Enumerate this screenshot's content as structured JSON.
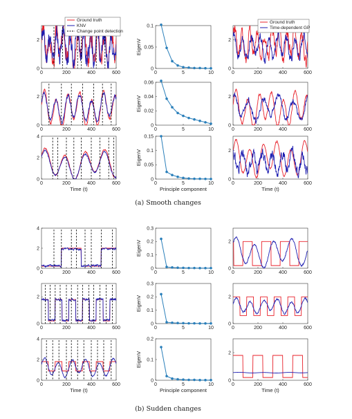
{
  "captions": {
    "smooth": "(a) Smooth changes",
    "sudden": "(b) Sudden changes"
  },
  "colors": {
    "ground_truth": "#e8202a",
    "knv": "#1c1cb0",
    "gp": "#1c1cb0",
    "change_point": "#000000",
    "eigen": "#2a7fba"
  },
  "legend_left": [
    "Ground truth",
    "KNV",
    "Change point detection"
  ],
  "legend_right": [
    "Ground truth",
    "Time-dependent GP"
  ],
  "chart_data": [
    {
      "id": "a1-knv",
      "type": "line",
      "xlabel": "",
      "ylabel": "",
      "xlim": [
        0,
        600
      ],
      "ylim": [
        0,
        3
      ],
      "yticks": [
        0,
        2
      ],
      "series": [
        {
          "name": "Ground truth",
          "kind": "smooth",
          "params": {
            "base": 1.6,
            "amp": 0.9,
            "period": 55,
            "phase": 0.2,
            "noise": 0.55,
            "seed": 3
          }
        },
        {
          "name": "KNV",
          "kind": "smooth",
          "params": {
            "base": 1.55,
            "amp": 0.85,
            "period": 55,
            "phase": 0.4,
            "noise": 0.55,
            "seed": 11
          }
        }
      ],
      "change_points": [
        100,
        170,
        290,
        320,
        440,
        510
      ]
    },
    {
      "id": "a1-eig",
      "type": "line",
      "xlabel": "",
      "ylabel": "EigenV",
      "xlim": [
        0,
        10
      ],
      "ylim": [
        0,
        0.1
      ],
      "yticks": [
        0,
        0.05,
        0.1
      ],
      "x": [
        1,
        2,
        3,
        4,
        5,
        6,
        7,
        8,
        9,
        10
      ],
      "values": [
        0.102,
        0.048,
        0.017,
        0.007,
        0.003,
        0.002,
        0.001,
        0.001,
        0.0005,
        0.0003
      ]
    },
    {
      "id": "a1-gp",
      "type": "line",
      "xlabel": "",
      "ylabel": "",
      "xlim": [
        0,
        600
      ],
      "ylim": [
        0,
        3
      ],
      "yticks": [
        0,
        2
      ],
      "series": [
        {
          "name": "Ground truth",
          "kind": "smooth",
          "params": {
            "base": 1.7,
            "amp": 0.9,
            "period": 60,
            "phase": 0.1,
            "noise": 0.35,
            "seed": 5
          }
        },
        {
          "name": "Time-dependent GP",
          "kind": "smooth",
          "params": {
            "base": 1.5,
            "amp": 0.7,
            "period": 70,
            "phase": 0.9,
            "noise": 0.25,
            "seed": 17
          }
        }
      ]
    },
    {
      "id": "a2-knv",
      "type": "line",
      "xlabel": "",
      "ylabel": "",
      "xlim": [
        0,
        600
      ],
      "ylim": [
        0,
        3
      ],
      "yticks": [
        0,
        2
      ],
      "series": [
        {
          "name": "Ground truth",
          "kind": "smooth",
          "params": {
            "base": 1.1,
            "amp": 1.0,
            "period": 95,
            "phase": 0.0,
            "noise": 0.08,
            "seed": 2
          }
        },
        {
          "name": "KNV",
          "kind": "smooth",
          "params": {
            "base": 1.2,
            "amp": 0.8,
            "period": 95,
            "phase": 0.15,
            "noise": 0.1,
            "seed": 7
          }
        }
      ],
      "change_points": [
        60,
        160,
        240,
        330,
        420,
        490,
        560
      ]
    },
    {
      "id": "a2-eig",
      "type": "line",
      "xlabel": "",
      "ylabel": "EigenV",
      "xlim": [
        0,
        10
      ],
      "ylim": [
        0,
        0.06
      ],
      "yticks": [
        0,
        0.02,
        0.04,
        0.06
      ],
      "x": [
        1,
        2,
        3,
        4,
        5,
        6,
        7,
        8,
        9,
        10
      ],
      "values": [
        0.062,
        0.037,
        0.025,
        0.017,
        0.013,
        0.01,
        0.008,
        0.006,
        0.004,
        0.002
      ]
    },
    {
      "id": "a2-gp",
      "type": "line",
      "xlabel": "",
      "ylabel": "",
      "xlim": [
        0,
        600
      ],
      "ylim": [
        0,
        3
      ],
      "yticks": [
        0,
        2
      ],
      "series": [
        {
          "name": "Ground truth",
          "kind": "smooth",
          "params": {
            "base": 1.1,
            "amp": 1.0,
            "period": 95,
            "phase": 0.0,
            "noise": 0.08,
            "seed": 2
          }
        },
        {
          "name": "Time-dependent GP",
          "kind": "smooth",
          "params": {
            "base": 1.2,
            "amp": 0.7,
            "period": 120,
            "phase": 1.3,
            "noise": 0.15,
            "seed": 21
          }
        }
      ]
    },
    {
      "id": "a3-knv",
      "type": "line",
      "xlabel": "Time (t)",
      "ylabel": "",
      "xlim": [
        0,
        600
      ],
      "ylim": [
        0,
        4
      ],
      "yticks": [
        0,
        2,
        4
      ],
      "series": [
        {
          "name": "Ground truth",
          "kind": "smooth",
          "params": {
            "base": 1.4,
            "amp": 1.1,
            "period": 160,
            "phase": 0.4,
            "noise": 0.05,
            "seed": 4
          }
        },
        {
          "name": "KNV",
          "kind": "smooth",
          "params": {
            "base": 1.3,
            "amp": 1.0,
            "period": 160,
            "phase": 0.45,
            "noise": 0.06,
            "seed": 9
          }
        }
      ],
      "change_points": [
        90,
        130,
        200,
        260,
        320,
        400,
        470,
        540,
        580
      ]
    },
    {
      "id": "a3-eig",
      "type": "line",
      "xlabel": "Principle component",
      "ylabel": "EigenV",
      "xlim": [
        0,
        10
      ],
      "ylim": [
        0,
        0.15
      ],
      "yticks": [
        0,
        0.05,
        0.1,
        0.15
      ],
      "x": [
        1,
        2,
        3,
        4,
        5,
        6,
        7,
        8,
        9,
        10
      ],
      "values": [
        0.15,
        0.025,
        0.014,
        0.008,
        0.004,
        0.002,
        0.001,
        0.001,
        0.0005,
        0.0003
      ]
    },
    {
      "id": "a3-gp",
      "type": "line",
      "xlabel": "Time (t)",
      "ylabel": "",
      "xlim": [
        0,
        600
      ],
      "ylim": [
        0,
        3
      ],
      "yticks": [
        0,
        2
      ],
      "series": [
        {
          "name": "Ground truth",
          "kind": "smooth",
          "params": {
            "base": 1.4,
            "amp": 1.0,
            "period": 110,
            "phase": 0.2,
            "noise": 0.05,
            "seed": 6
          }
        },
        {
          "name": "Time-dependent GP",
          "kind": "smooth",
          "params": {
            "base": 1.2,
            "amp": 0.6,
            "period": 80,
            "phase": 1.8,
            "noise": 0.3,
            "seed": 31
          }
        }
      ]
    },
    {
      "id": "b1-knv",
      "type": "line",
      "xlabel": "",
      "ylabel": "",
      "xlim": [
        0,
        600
      ],
      "ylim": [
        0,
        4
      ],
      "yticks": [
        0,
        2,
        4
      ],
      "series": [
        {
          "name": "Ground truth",
          "kind": "step",
          "params": {
            "high": 2.0,
            "low": 0.2,
            "first_high": 160,
            "period": 320,
            "noise": 0.0,
            "seed": 1
          }
        },
        {
          "name": "KNV",
          "kind": "step",
          "params": {
            "high": 1.9,
            "low": 0.25,
            "first_high": 160,
            "period": 320,
            "noise": 0.08,
            "seed": 8
          }
        }
      ],
      "change_points": [
        100,
        160,
        240,
        280,
        350,
        400,
        480,
        570
      ]
    },
    {
      "id": "b1-eig",
      "type": "line",
      "xlabel": "",
      "ylabel": "EigenV",
      "xlim": [
        0,
        10
      ],
      "ylim": [
        0,
        0.3
      ],
      "yticks": [
        0,
        0.1,
        0.2,
        0.3
      ],
      "x": [
        1,
        2,
        3,
        4,
        5,
        6,
        7,
        8,
        9,
        10
      ],
      "values": [
        0.22,
        0.01,
        0.006,
        0.004,
        0.003,
        0.002,
        0.002,
        0.001,
        0.001,
        0.001
      ]
    },
    {
      "id": "b1-gp",
      "type": "line",
      "xlabel": "",
      "ylabel": "",
      "xlim": [
        0,
        600
      ],
      "ylim": [
        0,
        3
      ],
      "yticks": [
        0,
        2
      ],
      "series": [
        {
          "name": "Ground truth",
          "kind": "step",
          "params": {
            "high": 2.0,
            "low": 0.2,
            "first_high": 80,
            "period": 150,
            "noise": 0.0,
            "seed": 1
          }
        },
        {
          "name": "Time-dependent GP",
          "kind": "smooth",
          "params": {
            "base": 1.15,
            "amp": 0.85,
            "period": 150,
            "phase": 0.6,
            "noise": 0.05,
            "seed": 12
          }
        }
      ]
    },
    {
      "id": "b2-knv",
      "type": "line",
      "xlabel": "",
      "ylabel": "",
      "xlim": [
        0,
        600
      ],
      "ylim": [
        0,
        3
      ],
      "yticks": [
        0,
        2
      ],
      "series": [
        {
          "name": "Ground truth",
          "kind": "step",
          "params": {
            "high": 1.8,
            "low": 0.2,
            "first_high": 0,
            "period": 110,
            "noise": 0.0,
            "seed": 1
          }
        },
        {
          "name": "KNV",
          "kind": "step",
          "params": {
            "high": 1.8,
            "low": 0.25,
            "first_high": 0,
            "period": 110,
            "noise": 0.06,
            "seed": 10
          }
        }
      ],
      "change_points": [
        30,
        70,
        110,
        150,
        200,
        240,
        290,
        330,
        380,
        420,
        470,
        520,
        570
      ]
    },
    {
      "id": "b2-eig",
      "type": "line",
      "xlabel": "",
      "ylabel": "EigenV",
      "xlim": [
        0,
        10
      ],
      "ylim": [
        0,
        0.3
      ],
      "yticks": [
        0,
        0.1,
        0.2,
        0.3
      ],
      "x": [
        1,
        2,
        3,
        4,
        5,
        6,
        7,
        8,
        9,
        10
      ],
      "values": [
        0.22,
        0.01,
        0.006,
        0.004,
        0.003,
        0.002,
        0.002,
        0.001,
        0.001,
        0.001
      ]
    },
    {
      "id": "b2-gp",
      "type": "line",
      "xlabel": "",
      "ylabel": "",
      "xlim": [
        0,
        600
      ],
      "ylim": [
        0,
        3
      ],
      "yticks": [
        0,
        2
      ],
      "series": [
        {
          "name": "Ground truth",
          "kind": "step",
          "params": {
            "high": 2.0,
            "low": 0.6,
            "first_high": 0,
            "period": 110,
            "noise": 0.0,
            "seed": 1
          }
        },
        {
          "name": "Time-dependent GP",
          "kind": "smooth",
          "params": {
            "base": 1.3,
            "amp": 0.45,
            "period": 110,
            "phase": 0.0,
            "noise": 0.05,
            "seed": 14
          }
        }
      ]
    },
    {
      "id": "b3-knv",
      "type": "line",
      "xlabel": "Time (t)",
      "ylabel": "",
      "xlim": [
        0,
        600
      ],
      "ylim": [
        0,
        4
      ],
      "yticks": [
        0,
        2,
        4
      ],
      "series": [
        {
          "name": "Ground truth",
          "kind": "step",
          "params": {
            "high": 1.8,
            "low": 0.9,
            "first_high": 0,
            "period": 110,
            "noise": 0.0,
            "seed": 1
          }
        },
        {
          "name": "KNV",
          "kind": "smooth",
          "params": {
            "base": 1.2,
            "amp": 0.7,
            "period": 110,
            "phase": 0.1,
            "noise": 0.05,
            "seed": 19
          }
        }
      ],
      "change_points": [
        40,
        90,
        140,
        200,
        240,
        290,
        340,
        400,
        450,
        500,
        560
      ]
    },
    {
      "id": "b3-eig",
      "type": "line",
      "xlabel": "Principle component",
      "ylabel": "EigenV",
      "xlim": [
        0,
        10
      ],
      "ylim": [
        0,
        0.2
      ],
      "yticks": [
        0,
        0.1,
        0.2
      ],
      "x": [
        1,
        2,
        3,
        4,
        5,
        6,
        7,
        8,
        9,
        10
      ],
      "values": [
        0.16,
        0.02,
        0.008,
        0.005,
        0.003,
        0.002,
        0.002,
        0.001,
        0.001,
        0.001
      ]
    },
    {
      "id": "b3-gp",
      "type": "line",
      "xlabel": "Time (t)",
      "ylabel": "",
      "xlim": [
        0,
        600
      ],
      "ylim": [
        0,
        3
      ],
      "yticks": [
        0,
        2
      ],
      "series": [
        {
          "name": "Ground truth",
          "kind": "step",
          "params": {
            "high": 1.8,
            "low": 0.2,
            "first_high": 0,
            "period": 160,
            "noise": 0.0,
            "seed": 1
          }
        },
        {
          "name": "Time-dependent GP",
          "kind": "flat",
          "params": {
            "base": 0.55,
            "amp": 0.02,
            "period": 200,
            "phase": 0,
            "noise": 0,
            "seed": 2
          }
        }
      ]
    }
  ]
}
